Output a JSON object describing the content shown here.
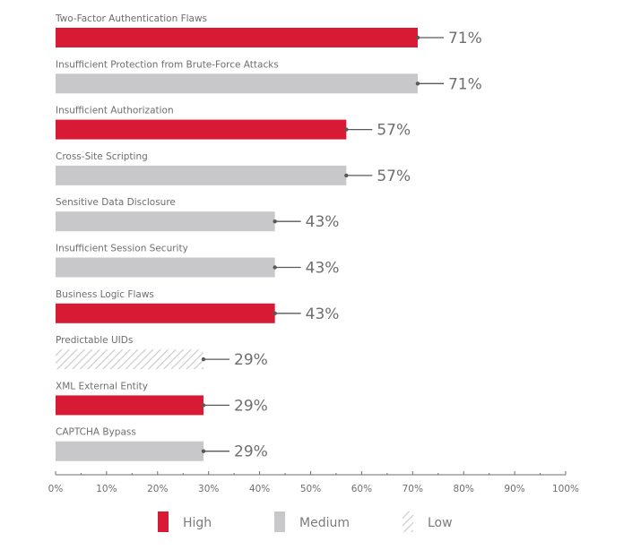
{
  "chart_data": {
    "type": "bar",
    "orientation": "horizontal",
    "title": "",
    "xlabel": "",
    "ylabel": "",
    "xlim": [
      0,
      100
    ],
    "x_ticks": [
      "0%",
      "10%",
      "20%",
      "30%",
      "40%",
      "50%",
      "60%",
      "70%",
      "80%",
      "90%",
      "100%"
    ],
    "x_tick_values": [
      0,
      10,
      20,
      30,
      40,
      50,
      60,
      70,
      80,
      90,
      100
    ],
    "minor_tick_step": 5,
    "grid": false,
    "value_suffix": "%",
    "categories": [
      "Two-Factor Authentication Flaws",
      "Insufficient Protection from Brute-Force Attacks",
      "Insufficient Authorization",
      "Cross-Site Scripting",
      "Sensitive Data Disclosure",
      "Insufficient Session Security",
      "Business Logic Flaws",
      "Predictable UIDs",
      "XML External Entity",
      "CAPTCHA Bypass"
    ],
    "values": [
      71,
      71,
      57,
      57,
      43,
      43,
      43,
      29,
      29,
      29
    ],
    "value_labels": [
      "71%",
      "71%",
      "57%",
      "57%",
      "43%",
      "43%",
      "43%",
      "29%",
      "29%",
      "29%"
    ],
    "severity": [
      "high",
      "medium",
      "high",
      "medium",
      "medium",
      "medium",
      "high",
      "low",
      "high",
      "medium"
    ],
    "legend": {
      "placement": "bottom",
      "entries": [
        {
          "key": "high",
          "label": "High",
          "color": "#d91a35",
          "pattern": "solid"
        },
        {
          "key": "medium",
          "label": "Medium",
          "color": "#c8c8ca",
          "pattern": "solid"
        },
        {
          "key": "low",
          "label": "Low",
          "color": "#c8c8ca",
          "pattern": "hatched"
        }
      ]
    }
  },
  "colors": {
    "high": "#d91a35",
    "medium": "#c8c8ca",
    "low_hatch": "#c8c8ca",
    "text": "#6d6e70",
    "axis": "#6d6e70",
    "leader": "#58595b"
  }
}
